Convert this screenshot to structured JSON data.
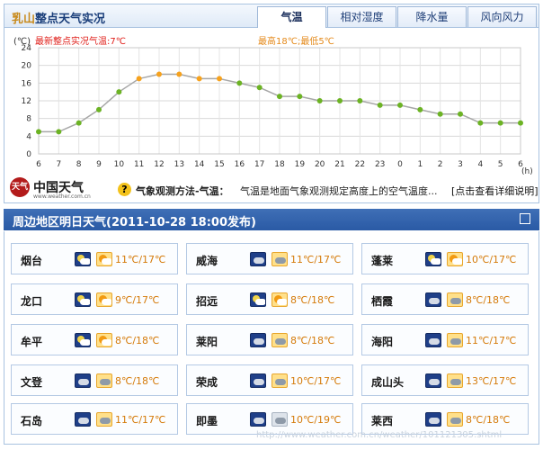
{
  "header": {
    "city": "乳山",
    "title": "整点天气实况",
    "tabs": [
      "气温",
      "相对湿度",
      "降水量",
      "风向风力"
    ],
    "active_tab": 0
  },
  "chart": {
    "unit_label": "(℃)",
    "latest_label": "最新整点实况气温:7℃",
    "range_label": "最高18℃;最低5℃",
    "hour_unit": "(h)",
    "colors": {
      "line": "#a7a7a7",
      "point_normal": "#6cb324",
      "point_high": "#f6a21e",
      "latest_text": "#e0201b",
      "range_text": "#e48a1b"
    }
  },
  "chart_data": {
    "type": "line",
    "x": [
      "6",
      "7",
      "8",
      "9",
      "10",
      "11",
      "12",
      "13",
      "14",
      "15",
      "16",
      "17",
      "18",
      "19",
      "20",
      "21",
      "22",
      "23",
      "0",
      "1",
      "2",
      "3",
      "4",
      "5",
      "6"
    ],
    "values": [
      5,
      5,
      7,
      10,
      14,
      17,
      18,
      18,
      17,
      17,
      16,
      15,
      13,
      13,
      12,
      12,
      12,
      11,
      11,
      10,
      9,
      9,
      7,
      7,
      7
    ],
    "ylim": [
      0,
      24
    ],
    "yticks": [
      0,
      4,
      8,
      12,
      16,
      20,
      24
    ],
    "xlabel": "(h)",
    "ylabel": "(℃)",
    "grid": true
  },
  "footer": {
    "logo_mark": "天气",
    "logo_text": "中国天气",
    "logo_url": "www.weather.com.cn",
    "help_icon": "?",
    "method_label": "气象观测方法-气温：",
    "method_text": "气温是地面气象观测规定高度上的空气温度...",
    "detail_link": "[点击查看详细说明]"
  },
  "forecast": {
    "title": "周边地区明日天气(2011-10-28  18:00发布)",
    "cities": [
      {
        "name": "烟台",
        "temp": "11℃/17℃",
        "icon1": "night",
        "icon2": "day"
      },
      {
        "name": "威海",
        "temp": "11℃/17℃",
        "icon1": "nightcloudy",
        "icon2": "daycloudy"
      },
      {
        "name": "蓬莱",
        "temp": "10℃/17℃",
        "icon1": "night",
        "icon2": "day"
      },
      {
        "name": "龙口",
        "temp": "9℃/17℃",
        "icon1": "night",
        "icon2": "day"
      },
      {
        "name": "招远",
        "temp": "8℃/18℃",
        "icon1": "night",
        "icon2": "day"
      },
      {
        "name": "栖霞",
        "temp": "8℃/18℃",
        "icon1": "nightcloudy",
        "icon2": "daycloudy"
      },
      {
        "name": "牟平",
        "temp": "8℃/18℃",
        "icon1": "night",
        "icon2": "day"
      },
      {
        "name": "莱阳",
        "temp": "8℃/18℃",
        "icon1": "nightcloudy",
        "icon2": "daycloudy"
      },
      {
        "name": "海阳",
        "temp": "11℃/17℃",
        "icon1": "nightcloudy",
        "icon2": "daycloudy"
      },
      {
        "name": "文登",
        "temp": "8℃/18℃",
        "icon1": "nightcloudy",
        "icon2": "daycloudy"
      },
      {
        "name": "荣成",
        "temp": "10℃/17℃",
        "icon1": "nightcloudy",
        "icon2": "daycloudy"
      },
      {
        "name": "成山头",
        "temp": "13℃/17℃",
        "icon1": "nightcloudy",
        "icon2": "daycloudy"
      },
      {
        "name": "石岛",
        "temp": "11℃/17℃",
        "icon1": "nightcloudy",
        "icon2": "daycloudy"
      },
      {
        "name": "即墨",
        "temp": "10℃/19℃",
        "icon1": "nightcloudy",
        "icon2": "cloudy"
      },
      {
        "name": "莱西",
        "temp": "8℃/18℃",
        "icon1": "nightcloudy",
        "icon2": "daycloudy"
      }
    ]
  },
  "watermark": "http://www.weather.com.cn/weather/101121305.shtml"
}
